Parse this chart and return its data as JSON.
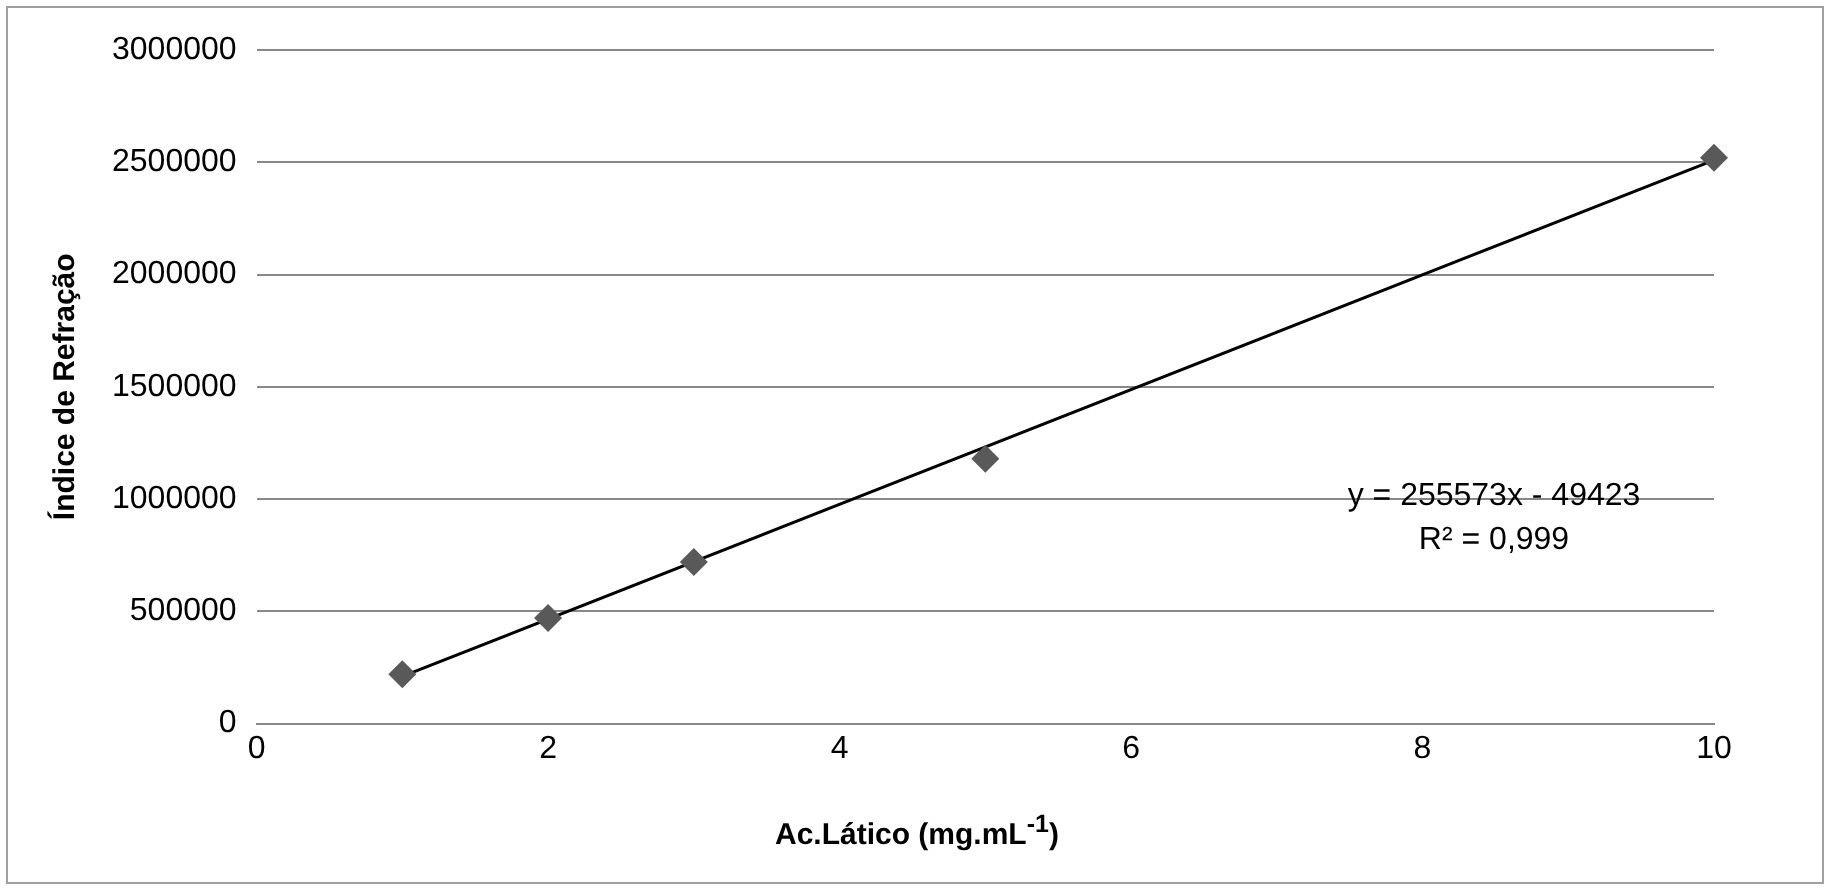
{
  "chart_data": {
    "type": "scatter",
    "xlabel": "Ac.Lático (mg.mL$^{-1}$)",
    "ylabel": "Índice de Refração",
    "xlim": [
      0,
      10
    ],
    "xticks": [
      0,
      2,
      4,
      6,
      8,
      10
    ],
    "ylim": [
      0,
      3000000
    ],
    "yticks": [
      0,
      500000,
      1000000,
      1500000,
      2000000,
      2500000,
      3000000
    ],
    "grid": "y",
    "legend": false,
    "marker": "diamond",
    "series": [
      {
        "color": "#595959",
        "x": [
          1,
          2,
          3,
          5,
          10
        ],
        "values": [
          220000,
          470000,
          720000,
          1180000,
          2520000
        ]
      },
      {
        "type": "line",
        "color": "#000000",
        "x": [
          1,
          10
        ],
        "values": [
          210000,
          2510000
        ],
        "marker": "none"
      }
    ],
    "annotations": [
      "y = 255573x - 49423",
      "R² = 0,999"
    ]
  }
}
